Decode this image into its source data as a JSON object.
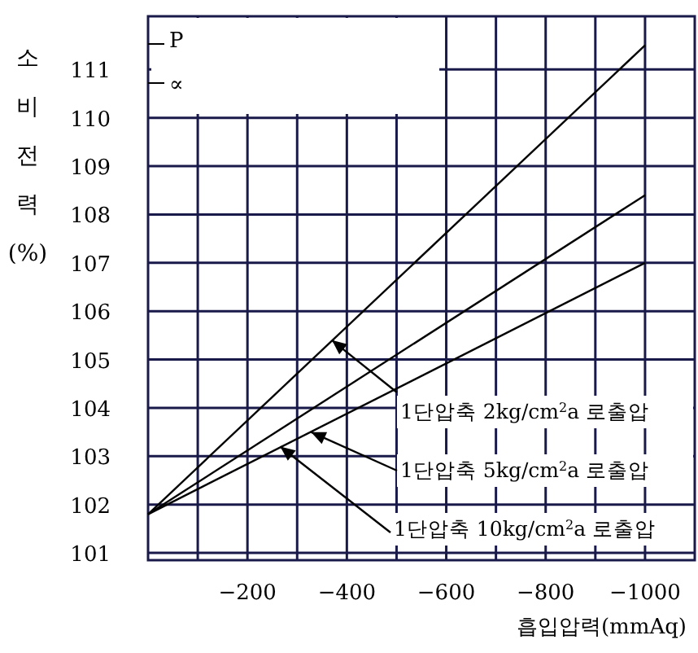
{
  "chart_data": {
    "type": "line",
    "xlabel": "흡입압력(mmAq)",
    "ylabel": "소비전력(%)",
    "x": [
      0,
      -1000
    ],
    "series": [
      {
        "color": "#000000",
        "values": [
          101.8,
          111.5
        ]
      },
      {
        "color": "#000000",
        "values": [
          101.8,
          108.4
        ]
      },
      {
        "color": "#000000",
        "values": [
          101.8,
          107.0
        ]
      }
    ],
    "xlim": [
      0,
      -1100
    ],
    "xticks": [
      {
        "value": -100,
        "label": null
      },
      -200,
      {
        "value": -300,
        "label": null
      },
      -400,
      {
        "value": -500,
        "label": null
      },
      -600,
      {
        "value": -700,
        "label": null
      },
      -800,
      {
        "value": -900,
        "label": null
      },
      -1000
    ],
    "ylim": [
      100.85,
      112.1
    ],
    "yticks": [
      101,
      102,
      103,
      104,
      105,
      106,
      107,
      108,
      109,
      110,
      111
    ],
    "grid": true,
    "marker": "none",
    "line_style": "solid",
    "annotations": [
      "P",
      "∝",
      {
        "text": "1단압축 2kg/cm$^{2}$a 로출압",
        "x": -370,
        "y": 105.4
      },
      {
        "text": "1단압축 5kg/cm$^{2}$a 로출압",
        "x": -328,
        "y": 103.5
      },
      {
        "text": "1단압축 10kg/cm$^{2}$a 로출압",
        "x": -266,
        "y": 103.2
      }
    ]
  }
}
